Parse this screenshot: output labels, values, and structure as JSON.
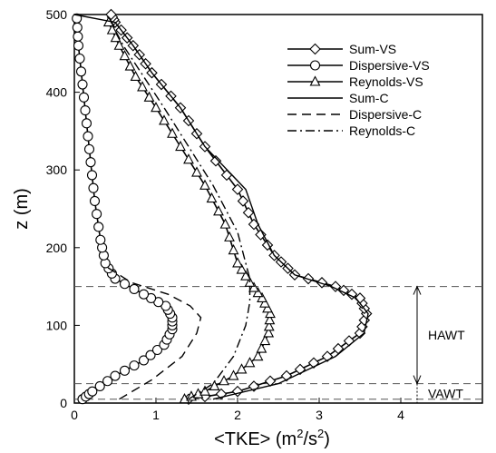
{
  "chart_data": {
    "type": "line",
    "title": "",
    "xlabel": "<TKE> (m",
    "xlabel_sup1": "2",
    "xlabel_mid": "/s",
    "xlabel_sup2": "2",
    "xlabel_end": ")",
    "ylabel": "z (m)",
    "xlim": [
      0,
      5
    ],
    "ylim": [
      0,
      500
    ],
    "xticks": [
      0,
      1,
      2,
      3,
      4
    ],
    "yticks": [
      0,
      100,
      200,
      300,
      400,
      500
    ],
    "grid": false,
    "legend_position": "top-right",
    "reference_lines": [
      5,
      25,
      150
    ],
    "annotations": [
      {
        "text": "HAWT",
        "z_from": 25,
        "z_to": 150
      },
      {
        "text": "VAWT",
        "z_from": 0,
        "z_to": 25
      }
    ],
    "series": [
      {
        "name": "Sum-VS",
        "style": "solid",
        "marker": "diamond",
        "x": [
          1.4,
          2.0,
          2.6,
          3.1,
          3.5,
          3.58,
          3.5,
          3.2,
          2.7,
          2.45,
          2.2,
          2.0,
          1.6,
          1.3,
          0.95,
          0.72,
          0.5,
          0.45
        ],
        "z": [
          5,
          15,
          35,
          60,
          90,
          115,
          135,
          150,
          165,
          190,
          230,
          275,
          330,
          380,
          425,
          460,
          490,
          500
        ]
      },
      {
        "name": "Dispersive-VS",
        "style": "solid",
        "marker": "circle",
        "x": [
          0.1,
          0.22,
          0.5,
          0.85,
          1.1,
          1.2,
          1.2,
          1.12,
          0.85,
          0.5,
          0.38,
          0.32,
          0.25,
          0.2,
          0.15,
          0.1,
          0.05,
          0.03
        ],
        "z": [
          5,
          15,
          35,
          55,
          75,
          95,
          110,
          125,
          140,
          160,
          180,
          210,
          260,
          310,
          360,
          410,
          460,
          495
        ]
      },
      {
        "name": "Reynolds-VS",
        "style": "solid",
        "marker": "triangle",
        "x": [
          1.35,
          1.6,
          1.95,
          2.25,
          2.38,
          2.4,
          2.3,
          2.15,
          2.0,
          1.85,
          1.6,
          1.3,
          1.0,
          0.75,
          0.55,
          0.42
        ],
        "z": [
          5,
          15,
          35,
          60,
          90,
          115,
          135,
          155,
          180,
          230,
          280,
          330,
          380,
          420,
          460,
          490
        ]
      },
      {
        "name": "Sum-C",
        "style": "solid",
        "marker": "none",
        "x": [
          1.7,
          2.5,
          3.2,
          3.55,
          3.6,
          3.45,
          3.15,
          2.7,
          2.45,
          2.25,
          2.1,
          1.6,
          1.3,
          0.95,
          0.72,
          0.5,
          0.0
        ],
        "z": [
          5,
          25,
          60,
          90,
          115,
          135,
          150,
          165,
          190,
          230,
          275,
          330,
          380,
          425,
          460,
          490,
          500
        ]
      },
      {
        "name": "Dispersive-C",
        "style": "dashed",
        "marker": "none",
        "x": [
          0.55,
          0.95,
          1.32,
          1.5,
          1.55,
          1.42,
          1.15,
          0.7,
          0.4
        ],
        "z": [
          5,
          30,
          60,
          90,
          110,
          125,
          140,
          155,
          175
        ]
      },
      {
        "name": "Reynolds-C",
        "style": "dashdot",
        "marker": "none",
        "x": [
          1.4,
          1.7,
          1.95,
          2.1,
          2.15,
          2.15,
          2.0,
          1.7,
          1.4,
          1.1,
          0.85,
          0.6,
          0.45
        ],
        "z": [
          5,
          25,
          60,
          100,
          130,
          160,
          220,
          280,
          330,
          380,
          420,
          460,
          490
        ]
      }
    ]
  }
}
